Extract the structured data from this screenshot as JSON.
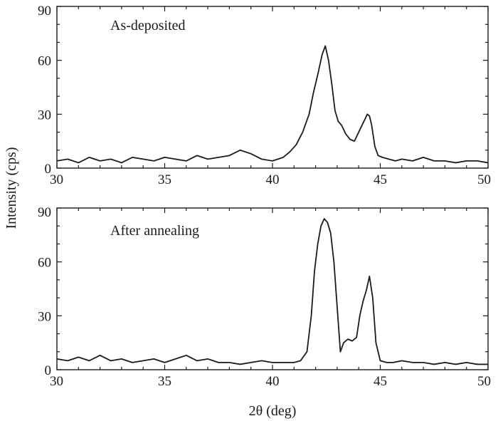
{
  "chart_data": [
    {
      "type": "line",
      "annotation": "As-deposited",
      "xlabel": "",
      "ylabel": "",
      "xlim": [
        30,
        50
      ],
      "ylim": [
        0,
        90
      ],
      "xticks": [
        30,
        35,
        40,
        45,
        50
      ],
      "yticks": [
        0,
        30,
        60,
        90
      ],
      "grid": false,
      "series": [
        {
          "x": [
            30,
            30.5,
            31,
            31.5,
            32,
            32.5,
            33,
            33.5,
            34,
            34.5,
            35,
            35.5,
            36,
            36.5,
            37,
            37.5,
            38,
            38.5,
            39,
            39.5,
            40,
            40.5,
            40.8,
            41.1,
            41.4,
            41.7,
            41.9,
            42.1,
            42.3,
            42.45,
            42.6,
            42.75,
            42.9,
            43.05,
            43.2,
            43.4,
            43.6,
            43.8,
            44,
            44.2,
            44.4,
            44.5,
            44.6,
            44.75,
            44.9,
            45.1,
            45.4,
            45.7,
            46,
            46.5,
            47,
            47.5,
            48,
            48.5,
            49,
            49.5,
            50
          ],
          "y": [
            4,
            5,
            3,
            6,
            4,
            5,
            3,
            6,
            5,
            4,
            6,
            5,
            4,
            7,
            5,
            6,
            7,
            10,
            8,
            5,
            4,
            6,
            9,
            13,
            20,
            30,
            42,
            52,
            63,
            68,
            60,
            47,
            32,
            26,
            24,
            19,
            16,
            15,
            20,
            25,
            30,
            29,
            24,
            12,
            7,
            6,
            5,
            4,
            5,
            4,
            6,
            4,
            4,
            3,
            4,
            4,
            3
          ]
        }
      ]
    },
    {
      "type": "line",
      "annotation": "After annealing",
      "xlabel": "2θ (deg)",
      "ylabel": "",
      "xlim": [
        30,
        50
      ],
      "ylim": [
        0,
        90
      ],
      "xticks": [
        30,
        35,
        40,
        45,
        50
      ],
      "yticks": [
        0,
        30,
        60,
        90
      ],
      "grid": false,
      "series": [
        {
          "x": [
            30,
            30.5,
            31,
            31.5,
            32,
            32.5,
            33,
            33.5,
            34,
            34.5,
            35,
            35.5,
            36,
            36.5,
            37,
            37.5,
            38,
            38.5,
            39,
            39.5,
            40,
            40.5,
            41,
            41.3,
            41.6,
            41.8,
            41.95,
            42.1,
            42.25,
            42.4,
            42.55,
            42.7,
            42.85,
            43,
            43.15,
            43.3,
            43.5,
            43.7,
            43.9,
            44.05,
            44.2,
            44.35,
            44.5,
            44.65,
            44.8,
            45,
            45.3,
            45.6,
            46,
            46.5,
            47,
            47.5,
            48,
            48.5,
            49,
            49.5,
            50
          ],
          "y": [
            6,
            5,
            7,
            5,
            8,
            5,
            6,
            4,
            5,
            6,
            4,
            6,
            8,
            5,
            6,
            4,
            4,
            3,
            4,
            5,
            4,
            4,
            4,
            5,
            10,
            30,
            55,
            70,
            80,
            84,
            82,
            76,
            60,
            35,
            10,
            15,
            17,
            16,
            18,
            30,
            38,
            44,
            52,
            40,
            15,
            5,
            4,
            4,
            5,
            4,
            4,
            3,
            4,
            3,
            4,
            3,
            3
          ]
        }
      ]
    }
  ],
  "shared_ylabel": "Intensity (cps)"
}
